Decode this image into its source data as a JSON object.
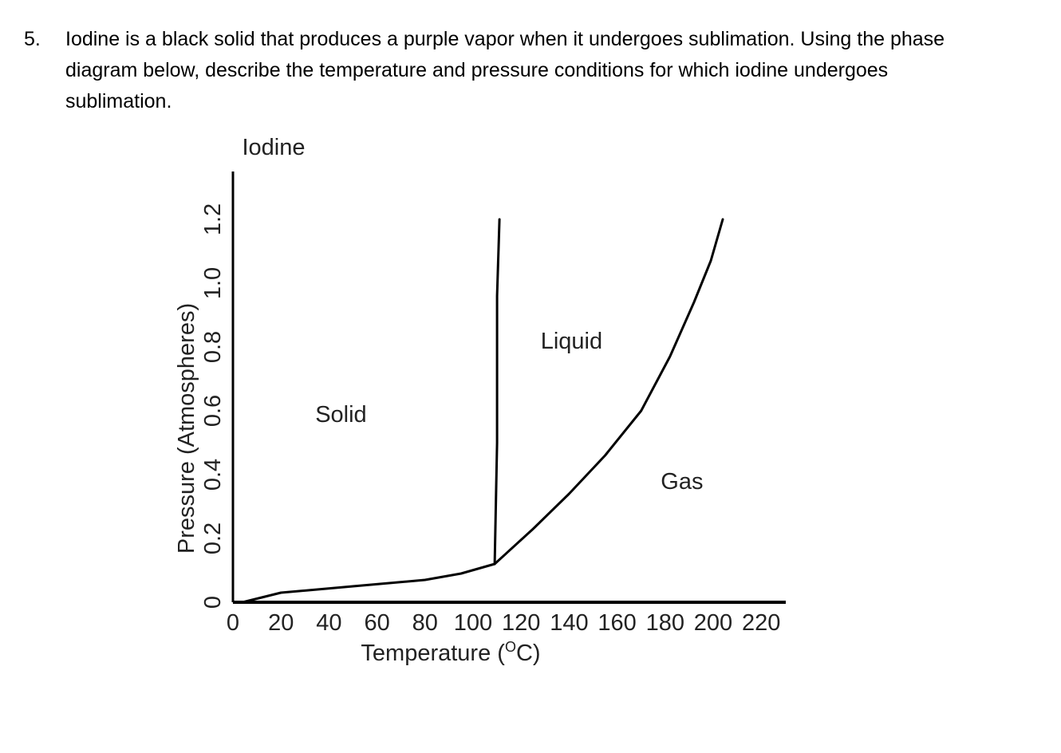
{
  "question": {
    "number": "5.",
    "text": "Iodine is a black solid that produces a purple vapor when it undergoes sublimation. Using the phase diagram below, describe the temperature and pressure conditions for which iodine undergoes sublimation."
  },
  "chart_data": {
    "type": "line",
    "title": "Iodine",
    "xlabel": "Temperature (",
    "xlabel_unit_sup": "O",
    "xlabel_unit_tail": "C)",
    "ylabel": "Pressure (Atmospheres)",
    "xlim": [
      0,
      220
    ],
    "ylim": [
      0,
      1.2
    ],
    "x_ticks": [
      "0",
      "20",
      "40",
      "60",
      "80",
      "100",
      "120",
      "140",
      "160",
      "180",
      "200",
      "220"
    ],
    "y_ticks": [
      "0",
      "0.2",
      "0.4",
      "0.6",
      "0.8",
      "1.0",
      "1.2"
    ],
    "regions": [
      {
        "label": "Solid",
        "x": 45,
        "y": 0.59
      },
      {
        "label": "Liquid",
        "x": 141,
        "y": 0.82
      },
      {
        "label": "Gas",
        "x": 187,
        "y": 0.38
      }
    ],
    "series": [
      {
        "values": [
          [
            4,
            0.0
          ],
          [
            20,
            0.03
          ],
          [
            50,
            0.05
          ],
          [
            80,
            0.07
          ],
          [
            95,
            0.09
          ],
          [
            109,
            0.12
          ]
        ]
      },
      {
        "values": [
          [
            109,
            0.12
          ],
          [
            125,
            0.23
          ],
          [
            140,
            0.34
          ],
          [
            155,
            0.46
          ],
          [
            170,
            0.6
          ],
          [
            182,
            0.77
          ],
          [
            192,
            0.94
          ],
          [
            199,
            1.07
          ],
          [
            204,
            1.2
          ]
        ]
      },
      {
        "values": [
          [
            109,
            0.12
          ],
          [
            110,
            0.5
          ],
          [
            110,
            0.96
          ],
          [
            111,
            1.2
          ]
        ]
      }
    ],
    "grid": false
  }
}
